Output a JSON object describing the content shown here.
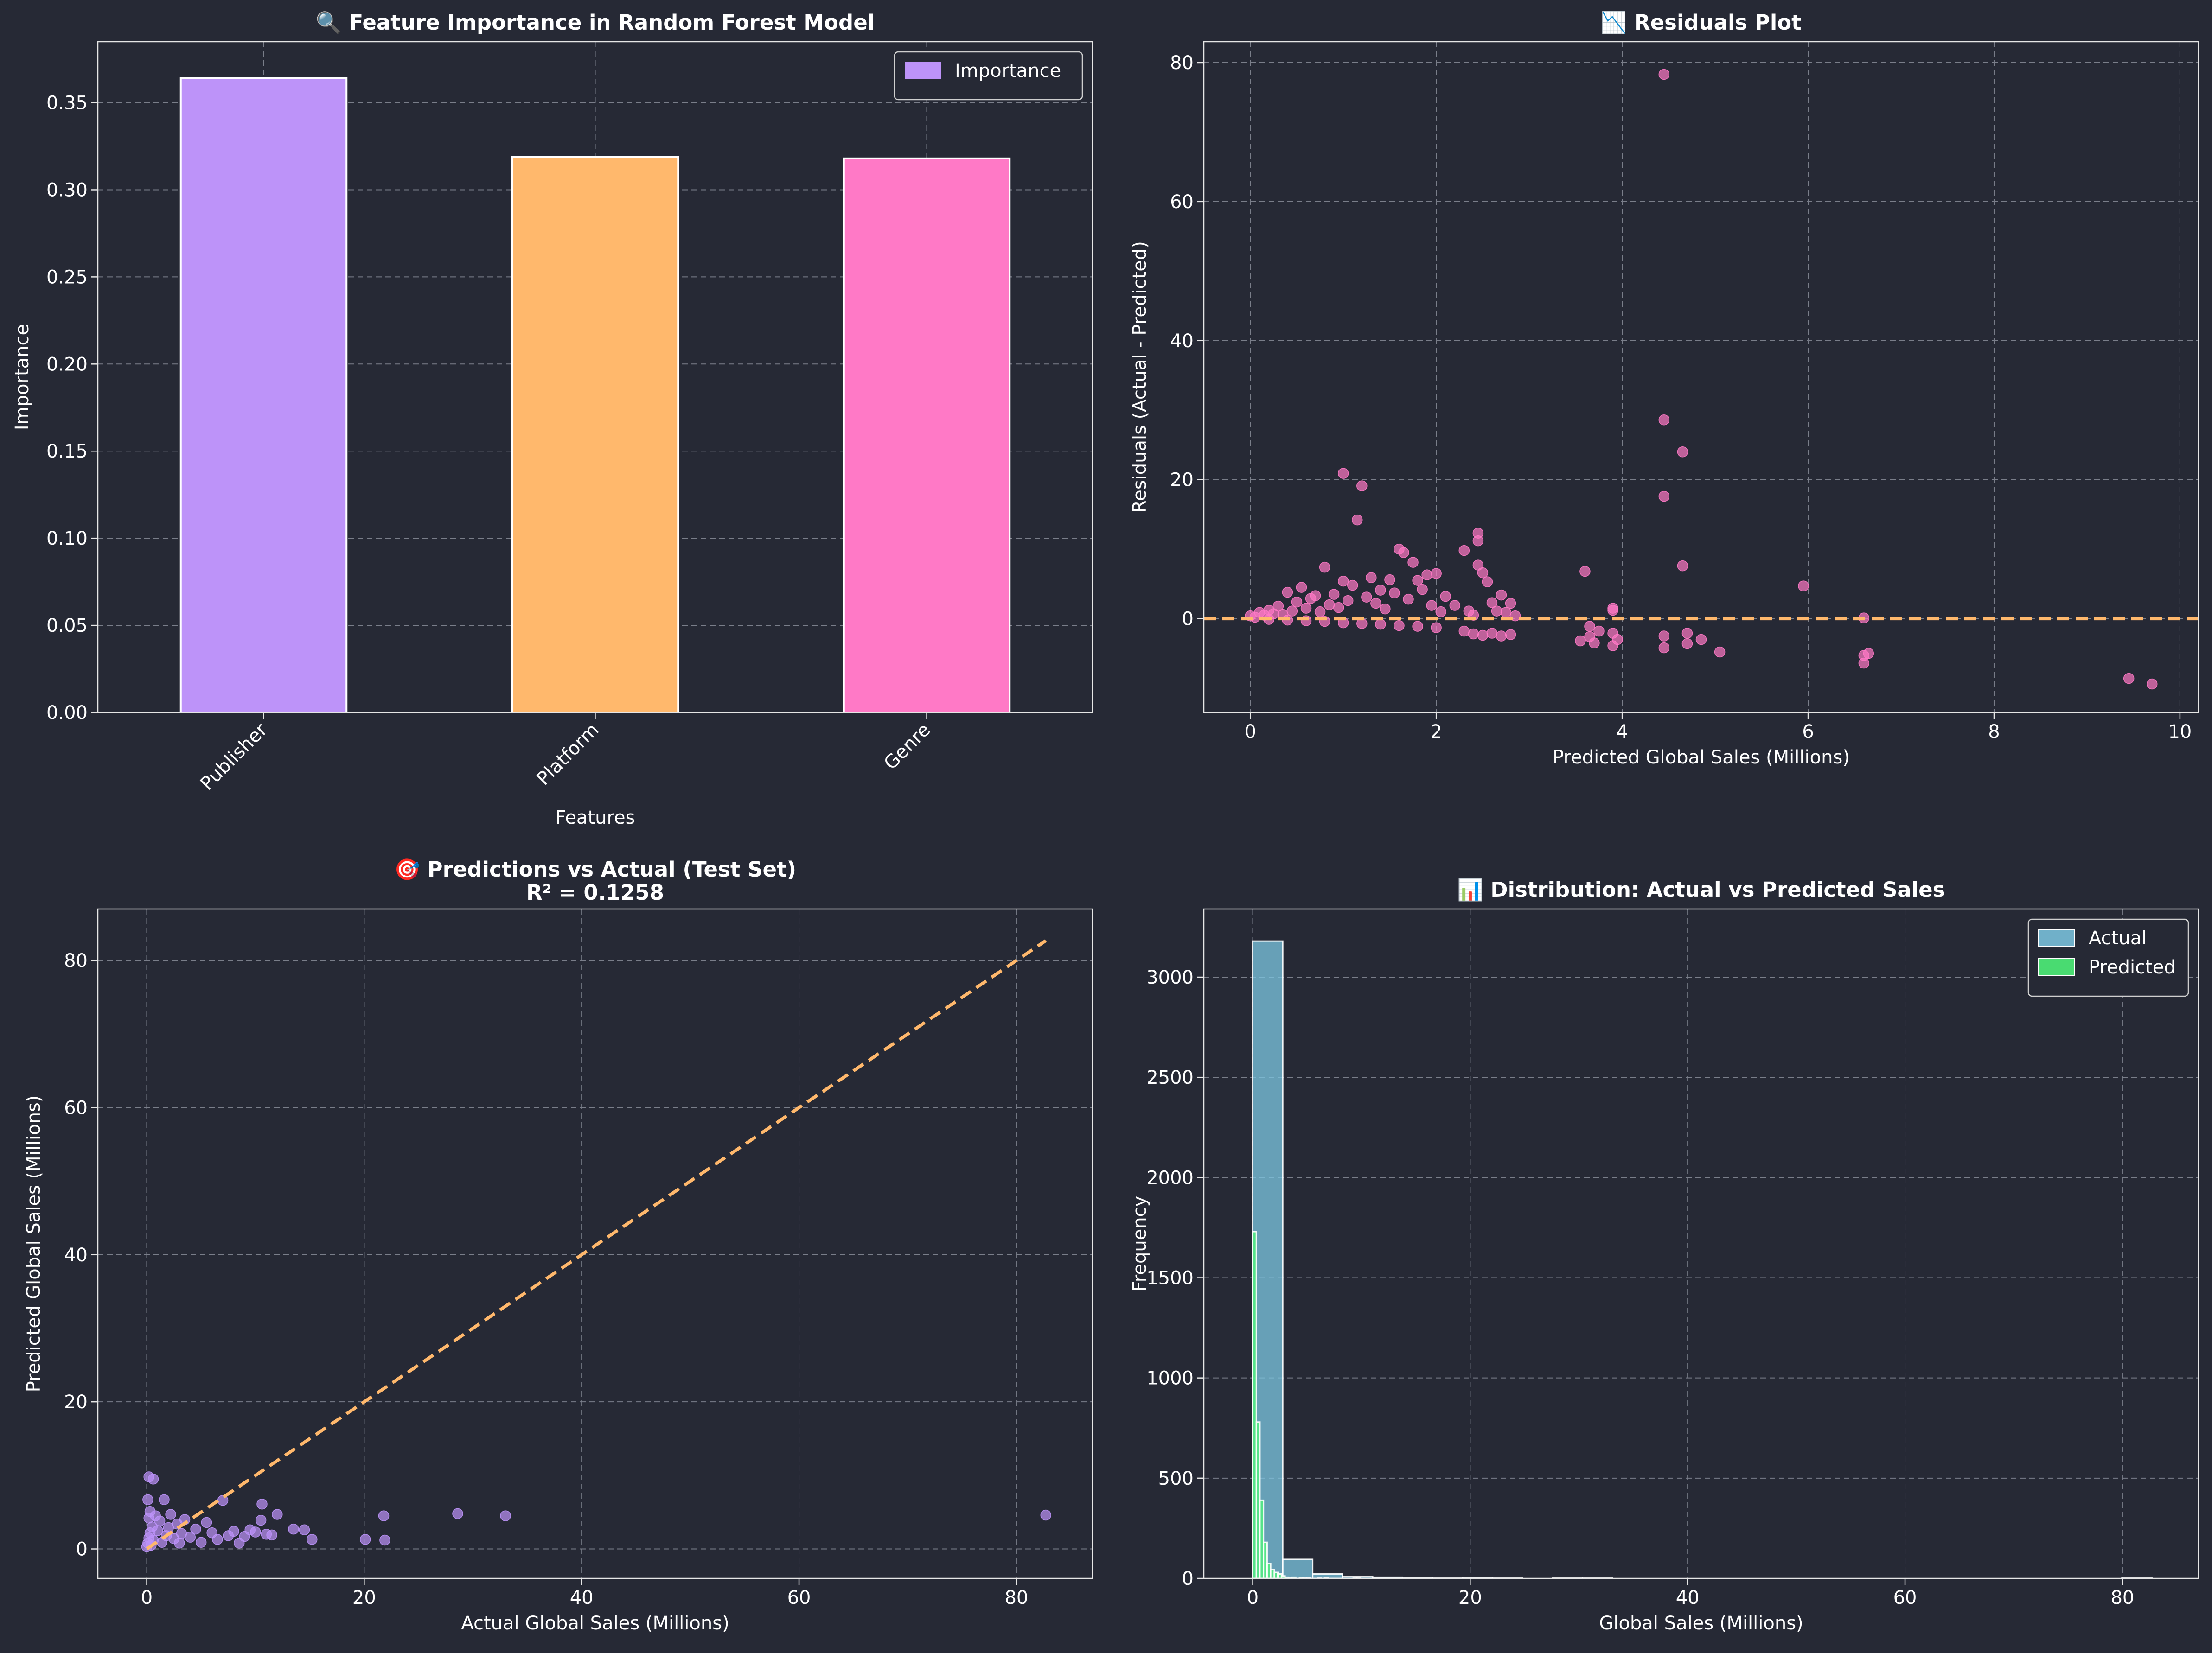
{
  "background": "#262935",
  "chart_data": [
    {
      "id": "fi",
      "type": "bar",
      "title": "🔍 Feature Importance in Random Forest Model",
      "xlabel": "Features",
      "ylabel": "Importance",
      "categories": [
        "Publisher",
        "Platform",
        "Genre"
      ],
      "values": [
        0.364,
        0.319,
        0.318
      ],
      "colors": [
        "#bd93f9",
        "#ffb86c",
        "#ff79c6"
      ],
      "series": [
        {
          "name": "Importance",
          "color": "#bd93f9"
        }
      ],
      "ylim": [
        0,
        0.385
      ],
      "yticks": [
        0.0,
        0.05,
        0.1,
        0.15,
        0.2,
        0.25,
        0.3,
        0.35
      ],
      "grid": true,
      "legend": "top-right"
    },
    {
      "id": "res",
      "type": "scatter",
      "title": "📉 Residuals Plot",
      "xlabel": "Predicted Global Sales (Millions)",
      "ylabel": "Residuals (Actual - Predicted)",
      "xlim": [
        -0.5,
        10.2
      ],
      "ylim": [
        -13.5,
        83
      ],
      "xticks": [
        0,
        2,
        4,
        6,
        8,
        10
      ],
      "yticks": [
        0,
        20,
        40,
        60,
        80
      ],
      "color": "#ff79c6",
      "reference_line": {
        "y": 0,
        "color": "#ffb86c"
      },
      "grid": true,
      "points": [
        [
          0.0,
          0.4
        ],
        [
          0.05,
          0.2
        ],
        [
          0.1,
          0.9
        ],
        [
          0.15,
          0.5
        ],
        [
          0.2,
          1.2
        ],
        [
          0.25,
          0.7
        ],
        [
          0.3,
          1.8
        ],
        [
          0.35,
          0.6
        ],
        [
          0.4,
          3.8
        ],
        [
          0.45,
          1.1
        ],
        [
          0.5,
          2.4
        ],
        [
          0.55,
          4.5
        ],
        [
          0.6,
          1.5
        ],
        [
          0.65,
          2.9
        ],
        [
          0.7,
          3.3
        ],
        [
          0.75,
          1.0
        ],
        [
          0.8,
          7.4
        ],
        [
          0.85,
          2.0
        ],
        [
          0.9,
          3.5
        ],
        [
          0.95,
          1.6
        ],
        [
          1.0,
          5.4
        ],
        [
          1.0,
          20.9
        ],
        [
          1.05,
          2.6
        ],
        [
          1.1,
          4.8
        ],
        [
          1.15,
          14.2
        ],
        [
          1.2,
          19.1
        ],
        [
          1.25,
          3.1
        ],
        [
          1.3,
          5.9
        ],
        [
          1.35,
          2.2
        ],
        [
          1.4,
          4.1
        ],
        [
          1.45,
          1.4
        ],
        [
          1.5,
          5.6
        ],
        [
          1.55,
          3.7
        ],
        [
          1.6,
          10.0
        ],
        [
          1.65,
          9.5
        ],
        [
          1.7,
          2.8
        ],
        [
          1.75,
          8.1
        ],
        [
          1.8,
          5.5
        ],
        [
          1.85,
          4.2
        ],
        [
          1.9,
          6.3
        ],
        [
          1.95,
          1.9
        ],
        [
          2.0,
          6.5
        ],
        [
          2.05,
          1.0
        ],
        [
          2.1,
          3.2
        ],
        [
          2.2,
          1.9
        ],
        [
          2.3,
          9.8
        ],
        [
          2.35,
          1.1
        ],
        [
          2.4,
          0.5
        ],
        [
          2.45,
          12.3
        ],
        [
          2.45,
          11.2
        ],
        [
          2.45,
          7.7
        ],
        [
          2.5,
          6.6
        ],
        [
          2.55,
          5.3
        ],
        [
          2.6,
          2.3
        ],
        [
          2.65,
          1.1
        ],
        [
          2.7,
          3.4
        ],
        [
          2.75,
          0.9
        ],
        [
          2.8,
          2.2
        ],
        [
          2.85,
          0.4
        ],
        [
          0.2,
          -0.1
        ],
        [
          0.4,
          -0.2
        ],
        [
          0.6,
          -0.3
        ],
        [
          0.8,
          -0.4
        ],
        [
          1.0,
          -0.6
        ],
        [
          1.2,
          -0.7
        ],
        [
          1.4,
          -0.8
        ],
        [
          1.6,
          -1.0
        ],
        [
          1.8,
          -1.1
        ],
        [
          2.0,
          -1.3
        ],
        [
          2.3,
          -1.8
        ],
        [
          2.4,
          -2.2
        ],
        [
          2.5,
          -2.4
        ],
        [
          2.6,
          -2.1
        ],
        [
          2.7,
          -2.5
        ],
        [
          2.8,
          -2.3
        ],
        [
          3.55,
          -3.2
        ],
        [
          3.6,
          6.8
        ],
        [
          3.65,
          -2.6
        ],
        [
          3.65,
          -1.1
        ],
        [
          3.7,
          -3.5
        ],
        [
          3.75,
          -1.8
        ],
        [
          3.9,
          -3.9
        ],
        [
          3.9,
          1.5
        ],
        [
          3.9,
          1.2
        ],
        [
          3.9,
          -2.1
        ],
        [
          3.95,
          -3.0
        ],
        [
          4.45,
          78.3
        ],
        [
          4.45,
          28.6
        ],
        [
          4.45,
          17.6
        ],
        [
          4.45,
          -2.5
        ],
        [
          4.45,
          -4.2
        ],
        [
          4.65,
          24.0
        ],
        [
          4.65,
          7.6
        ],
        [
          4.7,
          -2.1
        ],
        [
          4.7,
          -3.6
        ],
        [
          4.85,
          -3.0
        ],
        [
          5.05,
          -4.8
        ],
        [
          5.95,
          4.7
        ],
        [
          6.6,
          0.1
        ],
        [
          6.6,
          -5.3
        ],
        [
          6.6,
          -6.4
        ],
        [
          6.65,
          -5.0
        ],
        [
          9.45,
          -8.6
        ],
        [
          9.7,
          -9.4
        ]
      ]
    },
    {
      "id": "pva",
      "type": "scatter",
      "title": "🎯 Predictions vs Actual (Test Set)",
      "subtitle": "R² = 0.1258",
      "xlabel": "Actual Global Sales (Millions)",
      "ylabel": "Predicted Global Sales (Millions)",
      "xlim": [
        -4.5,
        87
      ],
      "ylim": [
        -4,
        87
      ],
      "xticks": [
        0,
        20,
        40,
        60,
        80
      ],
      "yticks": [
        0,
        20,
        40,
        60,
        80
      ],
      "color": "#bd93f9",
      "reference_line": {
        "from": [
          0,
          0
        ],
        "to": [
          82.7,
          82.7
        ],
        "color": "#ffb86c"
      },
      "grid": true,
      "points": [
        [
          0.0,
          0.3
        ],
        [
          0.1,
          0.8
        ],
        [
          0.2,
          1.5
        ],
        [
          0.3,
          2.2
        ],
        [
          0.4,
          0.5
        ],
        [
          0.5,
          3.0
        ],
        [
          0.6,
          1.2
        ],
        [
          0.2,
          4.2
        ],
        [
          0.3,
          5.1
        ],
        [
          0.1,
          6.7
        ],
        [
          0.2,
          9.8
        ],
        [
          0.6,
          9.5
        ],
        [
          0.8,
          4.5
        ],
        [
          1.0,
          2.5
        ],
        [
          1.2,
          3.8
        ],
        [
          1.4,
          0.9
        ],
        [
          1.6,
          6.7
        ],
        [
          1.8,
          1.8
        ],
        [
          2.0,
          2.9
        ],
        [
          2.2,
          4.7
        ],
        [
          2.5,
          1.4
        ],
        [
          2.8,
          3.4
        ],
        [
          3.0,
          0.8
        ],
        [
          3.2,
          2.1
        ],
        [
          3.5,
          4.0
        ],
        [
          4.0,
          1.6
        ],
        [
          4.5,
          2.7
        ],
        [
          5.0,
          0.9
        ],
        [
          5.5,
          3.6
        ],
        [
          6.0,
          2.2
        ],
        [
          6.5,
          1.3
        ],
        [
          7.0,
          6.6
        ],
        [
          7.5,
          1.8
        ],
        [
          8.0,
          2.4
        ],
        [
          8.5,
          0.8
        ],
        [
          9.0,
          1.7
        ],
        [
          9.5,
          2.6
        ],
        [
          10.0,
          2.3
        ],
        [
          10.5,
          3.9
        ],
        [
          10.6,
          6.1
        ],
        [
          11.0,
          2.0
        ],
        [
          11.5,
          1.9
        ],
        [
          12.0,
          4.7
        ],
        [
          13.5,
          2.7
        ],
        [
          14.5,
          2.6
        ],
        [
          15.2,
          1.3
        ],
        [
          20.1,
          1.3
        ],
        [
          21.8,
          4.5
        ],
        [
          21.9,
          1.2
        ],
        [
          28.6,
          4.8
        ],
        [
          33.0,
          4.5
        ],
        [
          82.7,
          4.6
        ]
      ]
    },
    {
      "id": "dist",
      "type": "histogram",
      "title": "📊 Distribution: Actual vs Predicted Sales",
      "xlabel": "Global Sales (Millions)",
      "ylabel": "Frequency",
      "xlim": [
        -4.5,
        87
      ],
      "ylim": [
        0,
        3340
      ],
      "xticks": [
        0,
        20,
        40,
        60,
        80
      ],
      "yticks": [
        0,
        500,
        1000,
        1500,
        2000,
        2500,
        3000
      ],
      "grid": true,
      "legend": "top-right",
      "series": [
        {
          "name": "Actual",
          "color": "#7ec8e3",
          "bins": [
            [
              0.0,
              2.76,
              3180
            ],
            [
              2.76,
              5.51,
              95
            ],
            [
              5.51,
              8.27,
              22
            ],
            [
              8.27,
              11.03,
              8
            ],
            [
              11.03,
              13.78,
              6
            ],
            [
              13.78,
              16.54,
              3
            ],
            [
              16.54,
              19.3,
              1
            ],
            [
              19.3,
              22.06,
              3
            ],
            [
              22.06,
              24.81,
              1
            ],
            [
              27.57,
              30.33,
              1
            ],
            [
              30.33,
              33.08,
              1
            ],
            [
              79.95,
              82.71,
              1
            ]
          ]
        },
        {
          "name": "Predicted",
          "color": "#50fa7b",
          "bins": [
            [
              0.0,
              0.33,
              1730
            ],
            [
              0.33,
              0.66,
              780
            ],
            [
              0.66,
              0.99,
              390
            ],
            [
              0.99,
              1.32,
              180
            ],
            [
              1.32,
              1.65,
              75
            ],
            [
              1.65,
              1.98,
              45
            ],
            [
              1.98,
              2.31,
              30
            ],
            [
              2.31,
              2.64,
              22
            ],
            [
              2.64,
              2.97,
              12
            ],
            [
              2.97,
              3.3,
              6
            ],
            [
              3.3,
              3.63,
              4
            ],
            [
              3.63,
              3.96,
              6
            ],
            [
              4.29,
              4.62,
              5
            ],
            [
              4.62,
              4.95,
              3
            ],
            [
              4.95,
              5.28,
              2
            ],
            [
              5.94,
              6.27,
              1
            ],
            [
              6.6,
              6.93,
              3
            ],
            [
              9.24,
              9.57,
              1
            ],
            [
              9.57,
              9.9,
              1
            ]
          ]
        }
      ]
    }
  ]
}
